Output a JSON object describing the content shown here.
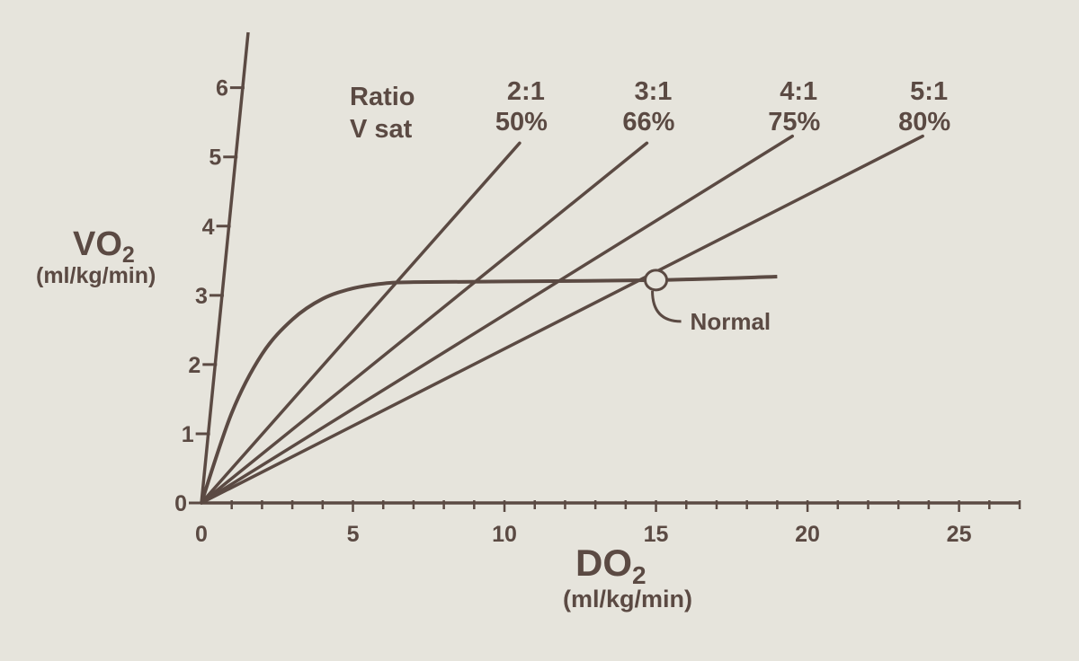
{
  "chart_data": {
    "type": "line",
    "x_axis": {
      "title": "DO",
      "title_subscript": "2",
      "units": "(ml/kg/min)",
      "min": 0,
      "max": 27,
      "ticks": [
        0,
        5,
        10,
        15,
        20,
        25
      ],
      "tick_labels": [
        "0",
        "5",
        "10",
        "15",
        "20",
        "25"
      ]
    },
    "y_axis": {
      "title": "VO",
      "title_subscript": "2",
      "units": "(ml/kg/min)",
      "min": 0,
      "max": 6.8,
      "ticks": [
        0,
        1,
        2,
        3,
        4,
        5,
        6
      ],
      "tick_labels": [
        "0",
        "1",
        "2",
        "3",
        "4",
        "5",
        "6"
      ]
    },
    "ratio_header": {
      "row1": "Ratio",
      "row2": "V sat"
    },
    "ratio_lines": [
      {
        "ratio": "2:1",
        "vsat": "50%",
        "x_end": 10.5,
        "y_end": 5.2
      },
      {
        "ratio": "3:1",
        "vsat": "66%",
        "x_end": 14.7,
        "y_end": 5.2
      },
      {
        "ratio": "4:1",
        "vsat": "75%",
        "x_end": 19.5,
        "y_end": 5.3
      },
      {
        "ratio": "5:1",
        "vsat": "80%",
        "x_end": 23.8,
        "y_end": 5.3
      }
    ],
    "uptake_curve": {
      "x": [
        0,
        1,
        2,
        3,
        4,
        5,
        6,
        7,
        10,
        15,
        19
      ],
      "y": [
        0,
        1.3,
        2.15,
        2.65,
        2.95,
        3.1,
        3.17,
        3.19,
        3.2,
        3.22,
        3.27
      ]
    },
    "annotation": {
      "text": "Normal",
      "x": 15,
      "y": 3.22
    }
  }
}
